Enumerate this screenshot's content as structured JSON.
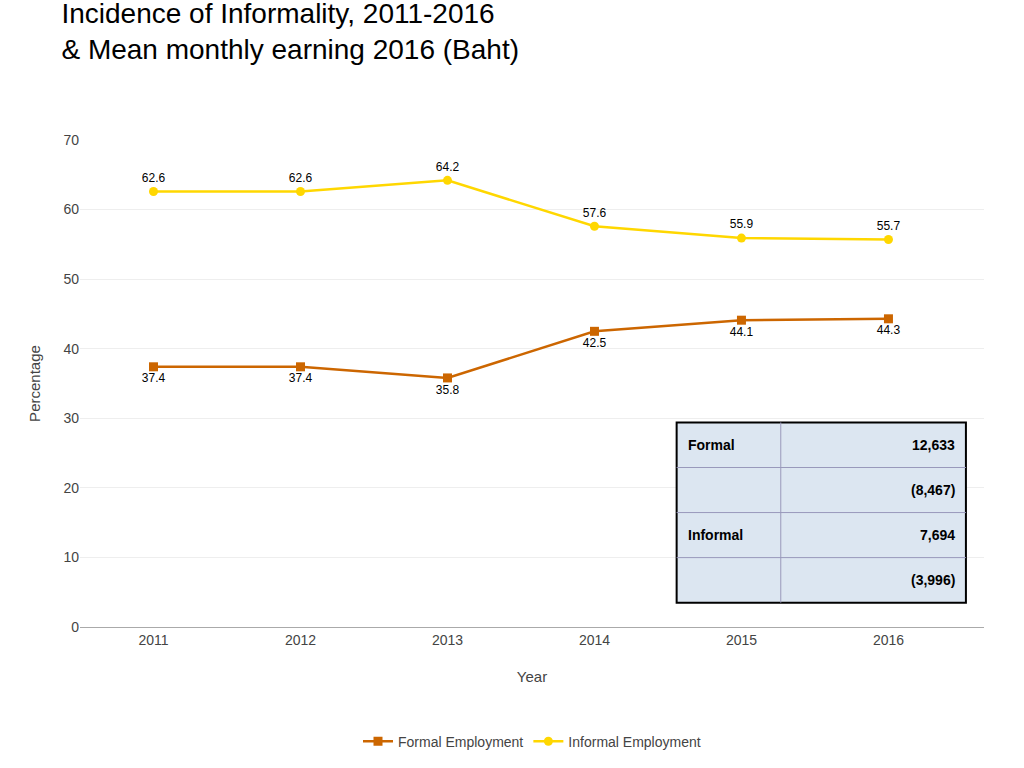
{
  "chart_data": {
    "type": "line",
    "title": "Incidence of Informality, 2011-2016\n& Mean monthly earning 2016 (Baht)",
    "xlabel": "Year",
    "ylabel": "Percentage",
    "x": [
      2011,
      2012,
      2013,
      2014,
      2015,
      2016
    ],
    "xlim": [
      2010.5,
      2016.65
    ],
    "xticks": [
      2011,
      2012,
      2013,
      2014,
      2015,
      2016
    ],
    "ylim": [
      0,
      70
    ],
    "yticks": [
      0,
      10,
      20,
      30,
      40,
      50,
      60,
      70
    ],
    "grid": true,
    "legend": "bottom",
    "data_labels": true,
    "series": [
      {
        "name": "Formal Employment",
        "color": "#CC6600",
        "marker": "square",
        "values": [
          37.4,
          37.4,
          35.8,
          42.5,
          44.1,
          44.3
        ]
      },
      {
        "name": "Informal Employment",
        "color": "#FFD700",
        "marker": "circle",
        "values": [
          62.6,
          62.6,
          64.2,
          57.6,
          55.9,
          55.7
        ]
      }
    ],
    "table": [
      [
        "Formal",
        "12,633"
      ],
      [
        null,
        "(8,467)"
      ],
      [
        "Informal",
        "7,694"
      ],
      [
        null,
        "(3,996)"
      ]
    ]
  }
}
